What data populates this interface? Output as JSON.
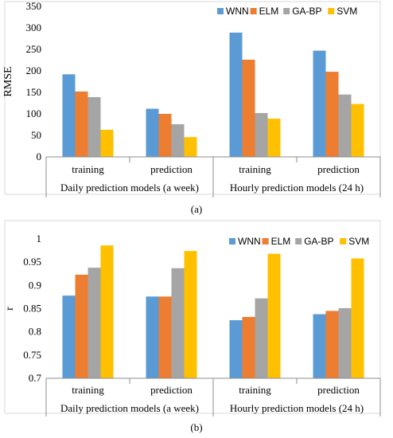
{
  "chart_data": [
    {
      "type": "bar",
      "caption": "(a)",
      "ylabel": "RMSE",
      "ylim": [
        0,
        350
      ],
      "yticks": [
        0,
        50,
        100,
        150,
        200,
        250,
        300,
        350
      ],
      "categories": [
        "training",
        "prediction",
        "training",
        "prediction"
      ],
      "groups": [
        "Daily prediction models (a week)",
        "Hourly prediction models (24 h)"
      ],
      "legend_position": "top-right",
      "grid": false,
      "series": [
        {
          "name": "WNN",
          "color": "#5B9BD5",
          "values": [
            192,
            112,
            289,
            247
          ]
        },
        {
          "name": "ELM",
          "color": "#ED7D31",
          "values": [
            152,
            100,
            226,
            198
          ]
        },
        {
          "name": "GA-BP",
          "color": "#A5A5A5",
          "values": [
            139,
            76,
            102,
            145
          ]
        },
        {
          "name": "SVM",
          "color": "#FFC000",
          "values": [
            63,
            46,
            89,
            123
          ]
        }
      ]
    },
    {
      "type": "bar",
      "caption": "(b)",
      "ylabel": "r",
      "ylim": [
        0.7,
        1
      ],
      "yticks": [
        "0.7",
        "0.75",
        "0.8",
        "0.85",
        "0.9",
        "0.95",
        "1"
      ],
      "categories": [
        "training",
        "prediction",
        "training",
        "prediction"
      ],
      "groups": [
        "Daily prediction models (a week)",
        "Hourly prediction models (24 h)"
      ],
      "legend_position": "top-right",
      "grid": false,
      "series": [
        {
          "name": "WNN",
          "color": "#5B9BD5",
          "values": [
            0.878,
            0.876,
            0.825,
            0.838
          ]
        },
        {
          "name": "ELM",
          "color": "#ED7D31",
          "values": [
            0.923,
            0.876,
            0.832,
            0.845
          ]
        },
        {
          "name": "GA-BP",
          "color": "#A5A5A5",
          "values": [
            0.938,
            0.937,
            0.872,
            0.851
          ]
        },
        {
          "name": "SVM",
          "color": "#FFC000",
          "values": [
            0.986,
            0.974,
            0.968,
            0.958
          ]
        }
      ]
    }
  ]
}
